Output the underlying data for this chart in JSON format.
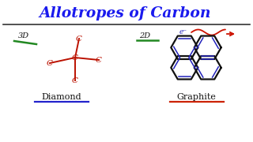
{
  "title": "Allotropes of Carbon",
  "title_color": "#1a1aee",
  "title_fontsize": 13.5,
  "background_color": "#ffffff",
  "diamond_label": "Diamond",
  "graphite_label": "Graphite",
  "label_fontsize": 8,
  "label_color": "#111111",
  "dim3_label": "3D",
  "dim2_label": "2D",
  "dim_fontsize": 7,
  "electron_label": "e⁻",
  "carbon_color": "#bb1100",
  "graphite_line_color": "#111111",
  "graphite_double_color": "#2222bb",
  "green_line_color": "#228822",
  "arrow_color": "#cc1100",
  "divider_color": "#333333",
  "underline_diamond_color": "#2222cc",
  "underline_graphite_color": "#cc2200"
}
